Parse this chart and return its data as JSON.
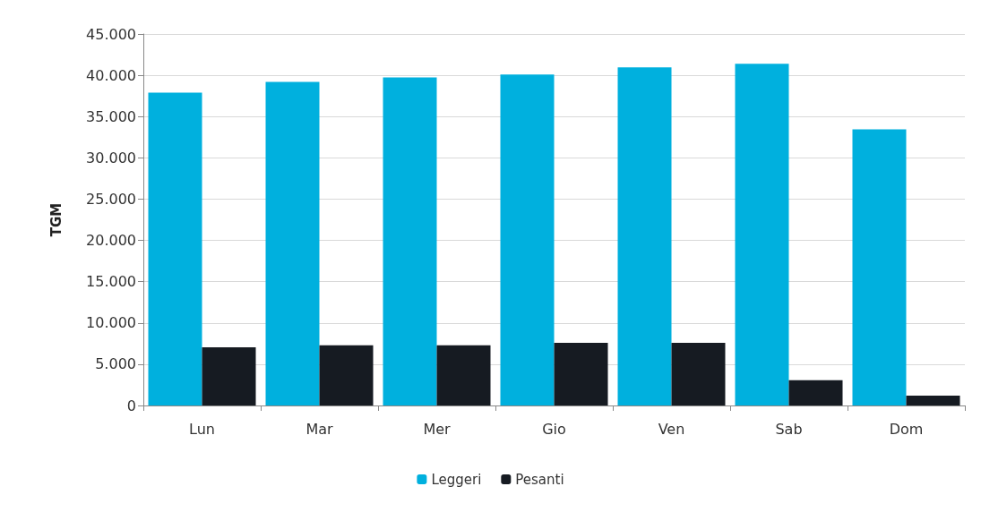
{
  "chart_data": {
    "type": "bar",
    "ylabel": "TGM",
    "categories": [
      "Lun",
      "Mar",
      "Mer",
      "Gio",
      "Ven",
      "Sab",
      "Dom"
    ],
    "series": [
      {
        "name": "Leggeri",
        "color": "#00b0de",
        "values": [
          37900,
          39200,
          39750,
          40100,
          40950,
          41400,
          33450
        ]
      },
      {
        "name": "Pesanti",
        "color": "#161b22",
        "values": [
          7050,
          7300,
          7300,
          7600,
          7600,
          3050,
          1200
        ]
      }
    ],
    "ylim": [
      0,
      45000
    ],
    "yticks": [
      {
        "value": 0,
        "label": "0"
      },
      {
        "value": 5000,
        "label": "5.000"
      },
      {
        "value": 10000,
        "label": "10.000"
      },
      {
        "value": 15000,
        "label": "15.000"
      },
      {
        "value": 20000,
        "label": "20.000"
      },
      {
        "value": 25000,
        "label": "25.000"
      },
      {
        "value": 30000,
        "label": "30.000"
      },
      {
        "value": 35000,
        "label": "35.000"
      },
      {
        "value": 40000,
        "label": "40.000"
      },
      {
        "value": 45000,
        "label": "45.000"
      }
    ],
    "grid": "y",
    "legend": "bottom"
  }
}
